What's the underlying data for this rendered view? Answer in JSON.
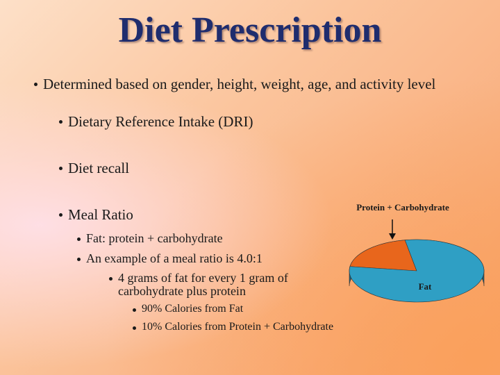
{
  "slide": {
    "title": "Diet Prescription",
    "bullets": [
      "Determined based on gender, height, weight, age, and activity level",
      "Dietary Reference Intake (DRI)",
      "Diet recall",
      "Meal Ratio",
      "Fat: protein + carbohydrate",
      "An example of a meal ratio is 4.0:1",
      "4 grams of fat for every 1 gram of carbohydrate plus protein",
      "90% Calories from Fat",
      "10% Calories from Protein + Carbohydrate"
    ]
  },
  "chart_data": {
    "type": "pie",
    "labels": [
      "Protein + Carbohydrate",
      "Fat"
    ],
    "values": [
      20,
      80
    ],
    "colors": [
      "#e8661c",
      "#2f9fc4"
    ]
  }
}
